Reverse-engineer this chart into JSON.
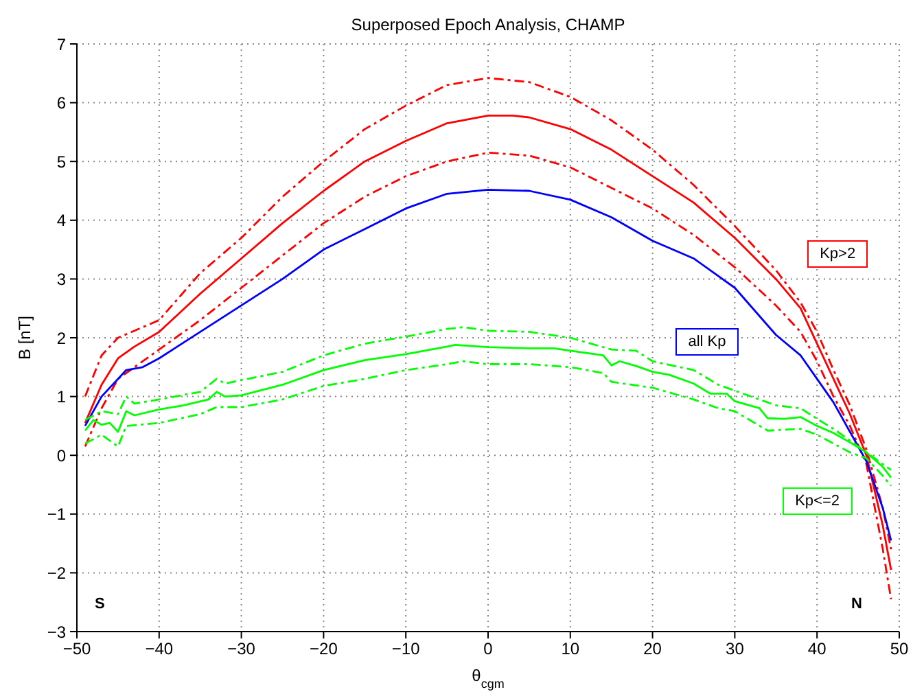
{
  "chart_data": {
    "type": "line",
    "title": "Superposed Epoch Analysis, CHAMP",
    "xlabel": "θ$_{cgm}$",
    "ylabel": "B [nT]",
    "xlim": [
      -50,
      50
    ],
    "ylim": [
      -3,
      7
    ],
    "xticks": [
      -50,
      -40,
      -30,
      -20,
      -10,
      0,
      10,
      20,
      30,
      40,
      50
    ],
    "yticks": [
      -3,
      -2,
      -1,
      0,
      1,
      2,
      3,
      4,
      5,
      6,
      7
    ],
    "grid": true,
    "legend": false,
    "marker": "none",
    "annotations": [
      "S",
      "N"
    ],
    "series": [
      {
        "name": "Kp>2",
        "color": "#ff0000",
        "line_style": "solid",
        "x": [
          -49,
          -47,
          -45,
          -43,
          -40,
          -35,
          -30,
          -25,
          -20,
          -15,
          -10,
          -5,
          0,
          3,
          5,
          10,
          15,
          20,
          25,
          30,
          35,
          38,
          40,
          42,
          44,
          46,
          48,
          49
        ],
        "values": [
          0.55,
          1.2,
          1.65,
          1.85,
          2.1,
          2.75,
          3.35,
          3.95,
          4.5,
          5.0,
          5.35,
          5.65,
          5.78,
          5.78,
          5.75,
          5.55,
          5.2,
          4.75,
          4.3,
          3.7,
          3.0,
          2.5,
          1.9,
          1.3,
          0.7,
          0,
          -1.2,
          -1.95
        ]
      },
      {
        "color": "#ff0000",
        "line_style": "dashed",
        "x": [
          -49,
          -47,
          -45,
          -40,
          -35,
          -30,
          -25,
          -20,
          -15,
          -10,
          -5,
          0,
          5,
          10,
          15,
          20,
          25,
          30,
          35,
          38,
          40,
          42,
          44,
          46,
          48,
          49
        ],
        "values": [
          1.0,
          1.7,
          2.0,
          2.3,
          3.1,
          3.7,
          4.4,
          5.0,
          5.55,
          5.95,
          6.3,
          6.42,
          6.35,
          6.1,
          5.7,
          5.2,
          4.6,
          3.9,
          3.15,
          2.6,
          2.1,
          1.45,
          0.85,
          0.1,
          -0.9,
          -1.6
        ]
      },
      {
        "color": "#ff0000",
        "line_style": "dashed",
        "x": [
          -49,
          -47,
          -45,
          -43,
          -40,
          -35,
          -30,
          -25,
          -20,
          -15,
          -10,
          -5,
          0,
          5,
          10,
          15,
          20,
          25,
          30,
          35,
          38,
          40,
          42,
          44,
          46,
          48,
          49
        ],
        "values": [
          0.15,
          0.8,
          1.3,
          1.5,
          1.8,
          2.3,
          2.85,
          3.4,
          3.95,
          4.4,
          4.75,
          5.0,
          5.15,
          5.1,
          4.9,
          4.55,
          4.2,
          3.75,
          3.2,
          2.55,
          2.1,
          1.6,
          1.0,
          0.5,
          -0.15,
          -1.6,
          -2.45
        ]
      },
      {
        "name": "all Kp",
        "color": "#0000ff",
        "line_style": "solid",
        "x": [
          -49,
          -47,
          -45,
          -44,
          -42,
          -40,
          -35,
          -30,
          -25,
          -20,
          -15,
          -10,
          -5,
          0,
          5,
          10,
          15,
          20,
          25,
          30,
          35,
          38,
          40,
          42,
          44,
          46,
          48,
          49
        ],
        "values": [
          0.5,
          1.0,
          1.3,
          1.45,
          1.5,
          1.65,
          2.1,
          2.55,
          3.0,
          3.5,
          3.85,
          4.2,
          4.45,
          4.52,
          4.5,
          4.35,
          4.05,
          3.65,
          3.35,
          2.85,
          2.05,
          1.7,
          1.3,
          0.9,
          0.4,
          -0.1,
          -0.9,
          -1.45
        ]
      },
      {
        "name": "Kp<=2",
        "color": "#00ff00",
        "line_style": "solid",
        "x": [
          -49,
          -48,
          -47,
          -46,
          -45,
          -44,
          -43,
          -40,
          -37,
          -34,
          -33,
          -32,
          -30,
          -25,
          -20,
          -15,
          -10,
          -5,
          -4,
          0,
          5,
          8,
          10,
          14,
          15,
          16,
          18,
          20,
          22,
          25,
          27,
          29,
          30,
          33,
          34,
          36,
          38,
          40,
          42,
          44,
          46,
          48,
          49
        ],
        "values": [
          0.42,
          0.6,
          0.52,
          0.55,
          0.4,
          0.75,
          0.68,
          0.78,
          0.85,
          0.95,
          1.08,
          1.0,
          1.02,
          1.2,
          1.45,
          1.62,
          1.72,
          1.85,
          1.88,
          1.84,
          1.82,
          1.82,
          1.78,
          1.7,
          1.53,
          1.6,
          1.52,
          1.42,
          1.37,
          1.22,
          1.05,
          1.05,
          0.92,
          0.8,
          0.63,
          0.62,
          0.65,
          0.5,
          0.38,
          0.22,
          0.05,
          -0.2,
          -0.38
        ]
      },
      {
        "color": "#00ff00",
        "line_style": "dashed",
        "x": [
          -49,
          -47,
          -45,
          -44,
          -43,
          -40,
          -35,
          -33,
          -32,
          -30,
          -25,
          -20,
          -15,
          -10,
          -5,
          -3,
          0,
          5,
          10,
          15,
          18,
          20,
          25,
          28,
          30,
          33,
          35,
          38,
          40,
          42,
          44,
          46,
          48,
          49
        ],
        "values": [
          0.6,
          0.75,
          0.7,
          1.0,
          0.88,
          0.95,
          1.08,
          1.3,
          1.22,
          1.28,
          1.42,
          1.7,
          1.9,
          2.02,
          2.15,
          2.18,
          2.12,
          2.1,
          2.0,
          1.8,
          1.78,
          1.6,
          1.45,
          1.2,
          1.1,
          0.95,
          0.85,
          0.8,
          0.62,
          0.45,
          0.25,
          0.05,
          -0.15,
          -0.25
        ]
      },
      {
        "color": "#00ff00",
        "line_style": "dashed",
        "x": [
          -49,
          -47,
          -45,
          -44,
          -40,
          -35,
          -33,
          -30,
          -25,
          -20,
          -15,
          -10,
          -5,
          -3,
          0,
          5,
          10,
          14,
          15,
          20,
          25,
          28,
          30,
          34,
          38,
          40,
          42,
          44,
          46,
          48,
          49
        ],
        "values": [
          0.2,
          0.35,
          0.15,
          0.5,
          0.55,
          0.7,
          0.82,
          0.82,
          0.95,
          1.18,
          1.3,
          1.45,
          1.55,
          1.6,
          1.55,
          1.55,
          1.5,
          1.4,
          1.25,
          1.15,
          0.95,
          0.8,
          0.75,
          0.42,
          0.45,
          0.35,
          0.2,
          0.05,
          -0.05,
          -0.35,
          -0.52
        ]
      }
    ]
  }
}
